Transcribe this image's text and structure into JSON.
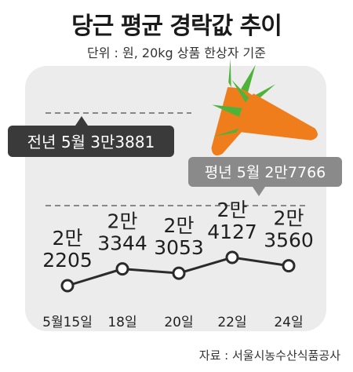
{
  "title": "당근 평균 경락값 추이",
  "subtitle": "단위 : 원, 20kg 상품 한상자 기준",
  "source": "자료 : 서울시농수산식품공사",
  "colors": {
    "panel": "#ececec",
    "line": "#2b2b2b",
    "badge_prev": "#3a3a3a",
    "badge_avg": "#8a8a8a",
    "carrot": "#f07d1c",
    "leaf": "#4fb33a"
  },
  "chart_data": {
    "type": "line",
    "categories": [
      "5월15일",
      "18일",
      "20일",
      "22일",
      "24일"
    ],
    "values": [
      22205,
      23344,
      23053,
      24127,
      23560
    ],
    "point_labels": [
      [
        "2만",
        "2205"
      ],
      [
        "2만",
        "3344"
      ],
      [
        "2만",
        "3053"
      ],
      [
        "2만",
        "4127"
      ],
      [
        "2만",
        "3560"
      ]
    ],
    "ylim": [
      20000,
      40000
    ],
    "reference_lines": [
      {
        "label": "전년 5월 3만3881",
        "value": 33881,
        "style": "dashed"
      },
      {
        "label": "평년 5월 2만7766",
        "value": 27766,
        "style": "dashed"
      }
    ]
  }
}
